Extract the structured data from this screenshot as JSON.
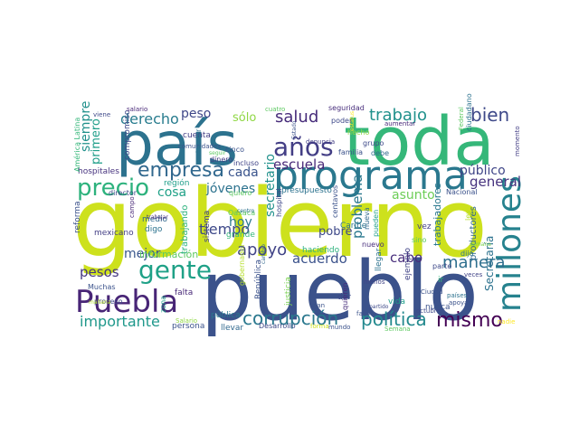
{
  "palette": {
    "background": "#ffffff",
    "scheme": "viridis"
  },
  "words": [
    {
      "text": "gobierno",
      "color": "#cde11d"
    },
    {
      "text": "pueblo",
      "color": "#3b528b"
    },
    {
      "text": "país",
      "color": "#2c728e"
    },
    {
      "text": "toda",
      "color": "#35b779"
    },
    {
      "text": "programa",
      "color": "#2a788e"
    },
    {
      "text": "millones",
      "color": "#26828e"
    },
    {
      "text": "Puebla",
      "color": "#482576"
    },
    {
      "text": "gente",
      "color": "#1fa187"
    },
    {
      "text": "precio",
      "color": "#2db27d"
    },
    {
      "text": "empresa",
      "color": "#31688e"
    },
    {
      "text": "años",
      "color": "#433e85"
    },
    {
      "text": "corrupción",
      "color": "#2a788e"
    },
    {
      "text": "mismo",
      "color": "#440154"
    },
    {
      "text": "política",
      "color": "#23898e"
    },
    {
      "text": "trabajo",
      "color": "#21918c"
    },
    {
      "text": "salud",
      "color": "#472c7a"
    },
    {
      "text": "bien",
      "color": "#3e4989"
    },
    {
      "text": "derecho",
      "color": "#287c8e"
    },
    {
      "text": "apoyo",
      "color": "#414487"
    },
    {
      "text": "manera",
      "color": "#2e6f8e"
    },
    {
      "text": "importante",
      "color": "#1f988b"
    },
    {
      "text": "tiempo",
      "color": "#3e4989"
    },
    {
      "text": "escuela",
      "color": "#482878"
    },
    {
      "text": "general",
      "color": "#46327e"
    },
    {
      "text": "público",
      "color": "#404688"
    },
    {
      "text": "jóvenes",
      "color": "#2c728e"
    },
    {
      "text": "acuerdo",
      "color": "#3b528b"
    },
    {
      "text": "cabo",
      "color": "#472d7b"
    },
    {
      "text": "pesos",
      "color": "#453781"
    },
    {
      "text": "mejor",
      "color": "#39568c"
    },
    {
      "text": "hoy",
      "color": "#2a788e"
    },
    {
      "text": "cada",
      "color": "#3a548c"
    },
    {
      "text": "cosa",
      "color": "#1fa187"
    },
    {
      "text": "asunto",
      "color": "#6ece58"
    },
    {
      "text": "peso",
      "color": "#3f4788"
    },
    {
      "text": "sólo",
      "color": "#8fd744"
    },
    {
      "text": "siempre",
      "color": "#21918c"
    },
    {
      "text": "primero",
      "color": "#1f9e89"
    },
    {
      "text": "secretario",
      "color": "#21918c"
    },
    {
      "text": "problema",
      "color": "#2a788e"
    },
    {
      "text": "Secretaría",
      "color": "#2c728e"
    },
    {
      "text": "pobre",
      "color": "#3e4989"
    },
    {
      "text": "trabajadores",
      "color": "#2a788e"
    },
    {
      "text": "productores",
      "color": "#31688e"
    },
    {
      "text": "información",
      "color": "#5ec962"
    },
    {
      "text": "trabajando",
      "color": "#2db27d"
    },
    {
      "text": "sistema",
      "color": "#414487"
    },
    {
      "text": "hospitales",
      "color": "#46327e"
    },
    {
      "text": "compromiso",
      "color": "#3e4989"
    },
    {
      "text": "América Latina",
      "color": "#35b779"
    },
    {
      "text": "reforma",
      "color": "#3b528b"
    },
    {
      "text": "cuenta",
      "color": "#433e85"
    },
    {
      "text": "región",
      "color": "#1f9e89"
    },
    {
      "text": "director",
      "color": "#3e4989"
    },
    {
      "text": "campo",
      "color": "#482878"
    },
    {
      "text": "medio",
      "color": "#31688e"
    },
    {
      "text": "digo",
      "color": "#2c728e"
    },
    {
      "text": "mexicano",
      "color": "#433e85"
    },
    {
      "text": "Muchas",
      "color": "#3b528b"
    },
    {
      "text": "proceso",
      "color": "#3e4989"
    },
    {
      "text": "zona",
      "color": "#1f9e89"
    },
    {
      "text": "falta",
      "color": "#482878"
    },
    {
      "text": "Salario",
      "color": "#8fd744"
    },
    {
      "text": "persona",
      "color": "#3b528b"
    },
    {
      "text": "pública",
      "color": "#2a788e"
    },
    {
      "text": "llevar",
      "color": "#31688e"
    },
    {
      "text": "grande",
      "color": "#35b779"
    },
    {
      "text": "Oaxaca",
      "color": "#5ec962"
    },
    {
      "text": "haciendo",
      "color": "#2db27d"
    },
    {
      "text": "gobernador",
      "color": "#b5de2b"
    },
    {
      "text": "República",
      "color": "#3b528b"
    },
    {
      "text": "justicia",
      "color": "#7ad151"
    },
    {
      "text": "Desarrollo",
      "color": "#3e4989"
    },
    {
      "text": "forma",
      "color": "#cde11d"
    },
    {
      "text": "mundo",
      "color": "#3b528b"
    },
    {
      "text": "presupuesto",
      "color": "#2c728e"
    },
    {
      "text": "hospital",
      "color": "#3e4989"
    },
    {
      "text": "centavos",
      "color": "#3b528b"
    },
    {
      "text": "Caribe",
      "color": "#2c728e"
    },
    {
      "text": "nuevo",
      "color": "#472d7b"
    },
    {
      "text": "nueva",
      "color": "#31688e"
    },
    {
      "text": "pueden",
      "color": "#1f9e89"
    },
    {
      "text": "llegar",
      "color": "#2c728e"
    },
    {
      "text": "ejemplo",
      "color": "#414487"
    },
    {
      "text": "nunca",
      "color": "#3b528b"
    },
    {
      "text": "quiero",
      "color": "#5ec962"
    },
    {
      "text": "dar",
      "color": "#3e4989"
    },
    {
      "text": "vez",
      "color": "#433e85"
    },
    {
      "text": "sino",
      "color": "#5ec962"
    },
    {
      "text": "dijo",
      "color": "#2c728e"
    },
    {
      "text": "ley",
      "color": "#b5de2b"
    },
    {
      "text": "parte",
      "color": "#3e4989"
    },
    {
      "text": "Ciudad",
      "color": "#3b528b"
    },
    {
      "text": "ir",
      "color": "#35b779"
    },
    {
      "text": "vida",
      "color": "#1f9e89"
    },
    {
      "text": "Semana",
      "color": "#5ec962"
    },
    {
      "text": "nadie",
      "color": "#fde725"
    },
    {
      "text": "favor",
      "color": "#3b528b"
    },
    {
      "text": "octubre",
      "color": "#3e4989"
    },
    {
      "text": "países",
      "color": "#2c728e"
    },
    {
      "text": "apoyar",
      "color": "#3b528b"
    },
    {
      "text": "veces",
      "color": "#414487"
    },
    {
      "text": "semana",
      "color": "#7ad151"
    },
    {
      "text": "viene",
      "color": "#3e4989"
    },
    {
      "text": "salario",
      "color": "#482878"
    },
    {
      "text": "comunidades",
      "color": "#3b528b"
    },
    {
      "text": "trabajar",
      "color": "#472d7b"
    },
    {
      "text": "mañana",
      "color": "#b5de2b"
    },
    {
      "text": "atender",
      "color": "#2c728e"
    },
    {
      "text": "seguir",
      "color": "#5ec962"
    },
    {
      "text": "dinero",
      "color": "#433e85"
    },
    {
      "text": "cinco",
      "color": "#3b528b"
    },
    {
      "text": "incluso",
      "color": "#414487"
    },
    {
      "text": "cuatro",
      "color": "#5ec962"
    },
    {
      "text": "centro",
      "color": "#2c728e"
    },
    {
      "text": "seguridad",
      "color": "#472d7b"
    },
    {
      "text": "poder",
      "color": "#3e4989"
    },
    {
      "text": "hecho",
      "color": "#8fd744"
    },
    {
      "text": "familia",
      "color": "#3b528b"
    },
    {
      "text": "denuncia",
      "color": "#433e85"
    },
    {
      "text": "Estado",
      "color": "#3b528b"
    },
    {
      "text": "estatus",
      "color": "#fde725"
    },
    {
      "text": "grupo",
      "color": "#3e4989"
    },
    {
      "text": "debe",
      "color": "#31688e"
    },
    {
      "text": "aumentar",
      "color": "#482878"
    },
    {
      "text": "Federal",
      "color": "#5ec962"
    },
    {
      "text": "ciudadano",
      "color": "#2c728e"
    },
    {
      "text": "momento",
      "color": "#433e85"
    },
    {
      "text": "Nacional",
      "color": "#3b528b"
    },
    {
      "text": "menos",
      "color": "#414487"
    },
    {
      "text": "partido",
      "color": "#3e4989"
    },
    {
      "text": "cambio",
      "color": "#31688e"
    },
    {
      "text": "plan",
      "color": "#3b528b"
    },
    {
      "text": "quieren",
      "color": "#472d7b"
    }
  ]
}
